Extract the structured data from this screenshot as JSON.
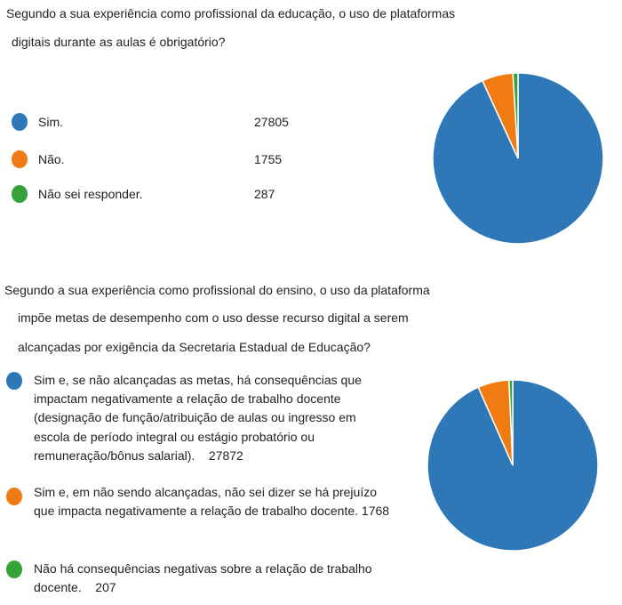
{
  "chart_data": [
    {
      "type": "pie",
      "title_lines": [
        "Segundo a sua experiência como profissional da educação, o uso de plataformas",
        "digitais durante as aulas é obrigatório?"
      ],
      "legend_position": "left",
      "categories": [
        "Sim.",
        "Não.",
        "Não sei responder."
      ],
      "values": [
        27805,
        1755,
        287
      ],
      "value_labels": [
        "27805",
        "1755",
        "287"
      ],
      "colors": [
        "#2e78b8",
        "#f07b12",
        "#36a33a"
      ]
    },
    {
      "type": "pie",
      "title_lines": [
        "Segundo a sua experiência como profissional do ensino, o uso da plataforma",
        "impõe metas de desempenho com o uso desse recurso digital a serem",
        "alcançadas por exigência da Secretaria Estadual de Educação?"
      ],
      "legend_position": "left",
      "categories": [
        "Sim e, se não alcançadas as metas, há consequências que impactam negativamente a relação de trabalho docente (designação de função/atribuição de aulas ou ingresso em escola de período integral ou estágio probatório ou remuneração/bônus salarial).",
        "Sim e, em não sendo alcançadas, não sei dizer se há prejuízo que impacta negativamente a relação de trabalho docente.",
        "Não há consequências negativas sobre a relação de trabalho docente."
      ],
      "values": [
        27872,
        1768,
        207
      ],
      "value_labels": [
        "27872",
        "1768",
        "207"
      ],
      "colors": [
        "#2e78b8",
        "#f07b12",
        "#36a33a"
      ]
    }
  ]
}
